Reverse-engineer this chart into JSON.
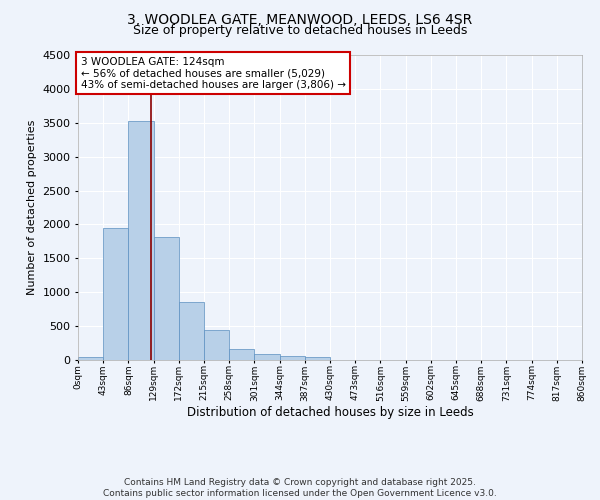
{
  "title": "3, WOODLEA GATE, MEANWOOD, LEEDS, LS6 4SR",
  "subtitle": "Size of property relative to detached houses in Leeds",
  "xlabel": "Distribution of detached houses by size in Leeds",
  "ylabel": "Number of detached properties",
  "bar_values": [
    50,
    1950,
    3520,
    1820,
    850,
    450,
    165,
    90,
    55,
    45,
    0,
    0,
    0,
    0,
    0,
    0,
    0,
    0,
    0,
    0
  ],
  "bin_edges": [
    0,
    43,
    86,
    129,
    172,
    215,
    258,
    301,
    344,
    387,
    430,
    473,
    516,
    559,
    602,
    645,
    688,
    731,
    774,
    817,
    860
  ],
  "xtick_labels": [
    "0sqm",
    "43sqm",
    "86sqm",
    "129sqm",
    "172sqm",
    "215sqm",
    "258sqm",
    "301sqm",
    "344sqm",
    "387sqm",
    "430sqm",
    "473sqm",
    "516sqm",
    "559sqm",
    "602sqm",
    "645sqm",
    "688sqm",
    "731sqm",
    "774sqm",
    "817sqm",
    "860sqm"
  ],
  "ylim": [
    0,
    4500
  ],
  "bar_color": "#b8d0e8",
  "bar_edge_color": "#5a8fc0",
  "vline_x": 124,
  "vline_color": "#8b0000",
  "annotation_text": "3 WOODLEA GATE: 124sqm\n← 56% of detached houses are smaller (5,029)\n43% of semi-detached houses are larger (3,806) →",
  "annotation_box_color": "#ffffff",
  "annotation_box_edge": "#cc0000",
  "footer1": "Contains HM Land Registry data © Crown copyright and database right 2025.",
  "footer2": "Contains public sector information licensed under the Open Government Licence v3.0.",
  "bg_color": "#eef3fb",
  "grid_color": "#ffffff"
}
